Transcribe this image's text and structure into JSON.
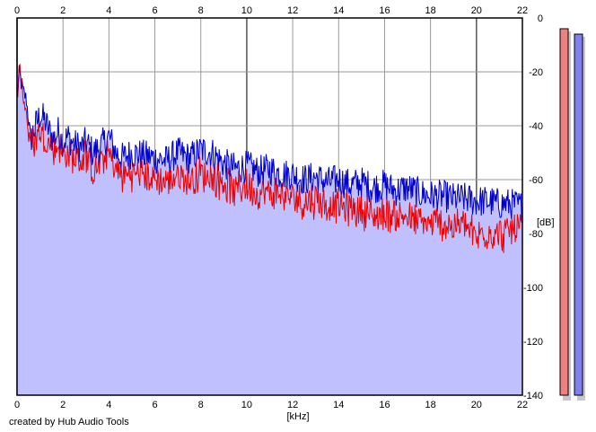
{
  "chart_data": {
    "type": "area",
    "title": "",
    "xlabel": "[kHz]",
    "ylabel": "[dB]",
    "xlim": [
      0,
      22
    ],
    "ylim": [
      -140,
      0
    ],
    "x_ticks": [
      "0",
      "2",
      "4",
      "6",
      "8",
      "10",
      "12",
      "14",
      "16",
      "18",
      "20",
      "22"
    ],
    "y_ticks": [
      "0",
      "-20",
      "-40",
      "-60",
      "-80",
      "-100",
      "-120",
      "-140"
    ],
    "grid": true,
    "fill_color": "#c0c0ff",
    "series": [
      {
        "color": "#0000cc",
        "x": [
          0,
          0.1,
          0.2,
          0.3,
          0.4,
          0.5,
          0.6,
          0.8,
          1.0,
          1.2,
          1.4,
          1.6,
          1.8,
          2.0,
          2.2,
          2.5,
          2.8,
          3.0,
          3.3,
          3.6,
          4.0,
          4.3,
          4.6,
          5.0,
          5.5,
          6.0,
          6.5,
          7.0,
          7.5,
          8.0,
          8.5,
          9.0,
          9.5,
          10.0,
          10.5,
          11.0,
          11.5,
          12.0,
          12.5,
          13.0,
          13.5,
          14.0,
          14.5,
          15.0,
          15.5,
          16.0,
          16.5,
          17.0,
          17.5,
          18.0,
          18.5,
          19.0,
          19.5,
          20.0,
          20.5,
          21.0,
          21.5,
          22.0
        ],
        "values": [
          -30,
          -20,
          -25,
          -28,
          -30,
          -38,
          -45,
          -40,
          -36,
          -38,
          -42,
          -45,
          -42,
          -46,
          -44,
          -47,
          -48,
          -46,
          -50,
          -48,
          -44,
          -50,
          -52,
          -50,
          -51,
          -52,
          -53,
          -50,
          -52,
          -49,
          -50,
          -54,
          -56,
          -55,
          -57,
          -56,
          -58,
          -58,
          -60,
          -59,
          -61,
          -60,
          -62,
          -61,
          -63,
          -62,
          -64,
          -63,
          -65,
          -66,
          -66,
          -67,
          -67,
          -68,
          -68,
          -69,
          -69,
          -70
        ]
      },
      {
        "color": "#ee0000",
        "x": [
          0,
          0.1,
          0.2,
          0.3,
          0.4,
          0.5,
          0.6,
          0.8,
          1.0,
          1.2,
          1.4,
          1.6,
          1.8,
          2.0,
          2.2,
          2.5,
          2.8,
          3.0,
          3.3,
          3.6,
          4.0,
          4.3,
          4.6,
          5.0,
          5.5,
          6.0,
          6.5,
          7.0,
          7.5,
          8.0,
          8.5,
          9.0,
          9.5,
          10.0,
          10.5,
          11.0,
          11.5,
          12.0,
          12.5,
          13.0,
          13.5,
          14.0,
          14.5,
          15.0,
          15.5,
          16.0,
          16.5,
          17.0,
          17.5,
          18.0,
          18.5,
          19.0,
          19.5,
          20.0,
          20.5,
          21.0,
          21.5,
          22.0
        ],
        "values": [
          -28,
          -18,
          -22,
          -30,
          -33,
          -42,
          -46,
          -44,
          -40,
          -43,
          -45,
          -48,
          -45,
          -50,
          -48,
          -51,
          -52,
          -49,
          -55,
          -53,
          -49,
          -55,
          -57,
          -56,
          -57,
          -58,
          -59,
          -57,
          -59,
          -56,
          -58,
          -60,
          -62,
          -61,
          -63,
          -63,
          -64,
          -65,
          -67,
          -66,
          -68,
          -68,
          -69,
          -70,
          -72,
          -71,
          -72,
          -73,
          -74,
          -75,
          -75,
          -76,
          -76,
          -80,
          -78,
          -79,
          -78,
          -76
        ]
      }
    ]
  },
  "level_meters": [
    {
      "color": "#f08080",
      "level_db": -4
    },
    {
      "color": "#8080f0",
      "level_db": -6
    }
  ],
  "credit": "created by Hub Audio Tools"
}
